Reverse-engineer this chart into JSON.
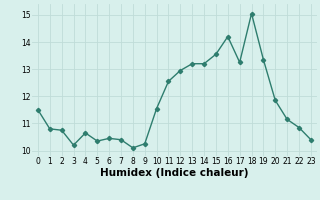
{
  "x": [
    0,
    1,
    2,
    3,
    4,
    5,
    6,
    7,
    8,
    9,
    10,
    11,
    12,
    13,
    14,
    15,
    16,
    17,
    18,
    19,
    20,
    21,
    22,
    23
  ],
  "y": [
    11.5,
    10.8,
    10.75,
    10.2,
    10.65,
    10.35,
    10.45,
    10.4,
    10.1,
    10.25,
    11.55,
    12.55,
    12.95,
    13.2,
    13.2,
    13.55,
    14.2,
    13.25,
    15.05,
    13.35,
    11.85,
    11.15,
    10.85,
    10.4
  ],
  "line_color": "#2e7d6e",
  "marker": "D",
  "marker_size": 2.2,
  "line_width": 1.0,
  "bg_color": "#d8f0ec",
  "grid_color": "#c0dcd8",
  "xlabel": "Humidex (Indice chaleur)",
  "xlim": [
    -0.5,
    23.5
  ],
  "ylim": [
    9.8,
    15.4
  ],
  "yticks": [
    10,
    11,
    12,
    13,
    14,
    15
  ],
  "xticks": [
    0,
    1,
    2,
    3,
    4,
    5,
    6,
    7,
    8,
    9,
    10,
    11,
    12,
    13,
    14,
    15,
    16,
    17,
    18,
    19,
    20,
    21,
    22,
    23
  ],
  "tick_fontsize": 5.5,
  "xlabel_fontsize": 7.5
}
